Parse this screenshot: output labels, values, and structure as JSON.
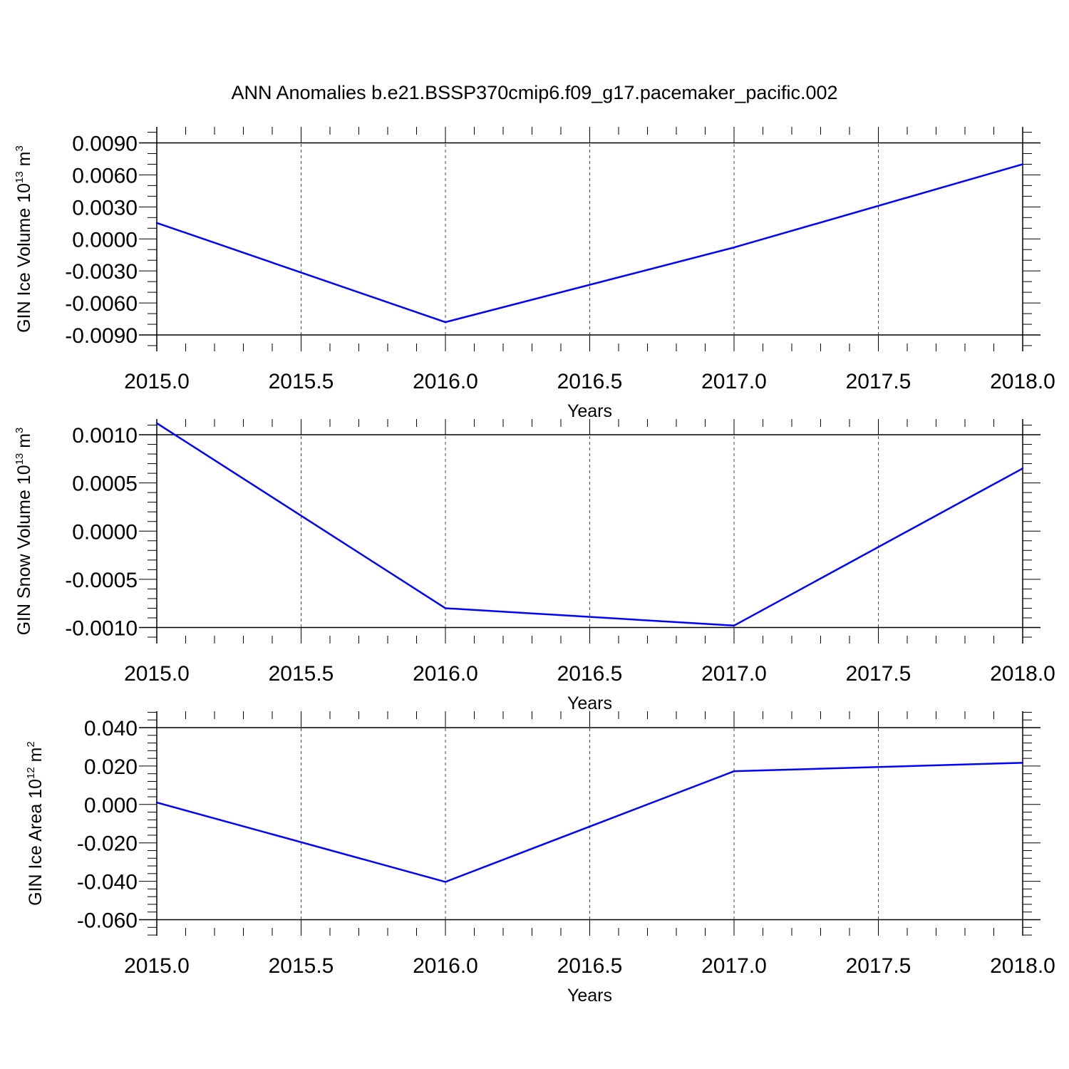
{
  "title": "ANN Anomalies b.e21.BSSP370cmip6.f09_g17.pacemaker_pacific.002",
  "colors": {
    "line": "#0000ff",
    "axis": "#000000",
    "grid": "#000000"
  },
  "chart_data": [
    {
      "type": "line",
      "xlabel": "Years",
      "ylabel": {
        "text": "GIN Ice Volume 10",
        "exp": "13",
        "unit": " m",
        "unit_exp": "3"
      },
      "xlim": [
        2015.0,
        2018.0
      ],
      "ylim": [
        -0.009,
        0.0102
      ],
      "xticks": [
        2015.0,
        2015.5,
        2016.0,
        2016.5,
        2017.0,
        2017.5,
        2018.0
      ],
      "xtick_labels": [
        "2015.0",
        "2015.5",
        "2016.0",
        "2016.5",
        "2017.0",
        "2017.5",
        "2018.0"
      ],
      "yticks": [
        0.009,
        0.006,
        0.003,
        0.0,
        -0.003,
        -0.006,
        -0.009
      ],
      "ytick_labels": [
        "0.0090",
        "0.0060",
        "0.0030",
        "0.0000",
        "-0.0030",
        "-0.0060",
        "-0.0090"
      ],
      "yminor": 0.001,
      "xminor": 0.1,
      "grid": "vertical dashed",
      "x": [
        2015,
        2016,
        2017,
        2018
      ],
      "values": [
        0.0015,
        -0.0078,
        -0.0008,
        0.007
      ]
    },
    {
      "type": "line",
      "xlabel": "Years",
      "ylabel": {
        "text": "GIN Snow Volume 10",
        "exp": "13",
        "unit": " m",
        "unit_exp": "3"
      },
      "xlim": [
        2015.0,
        2018.0
      ],
      "ylim": [
        -0.0012,
        0.0012
      ],
      "xticks": [
        2015.0,
        2015.5,
        2016.0,
        2016.5,
        2017.0,
        2017.5,
        2018.0
      ],
      "xtick_labels": [
        "2015.0",
        "2015.5",
        "2016.0",
        "2016.5",
        "2017.0",
        "2017.5",
        "2018.0"
      ],
      "yticks": [
        0.001,
        0.0005,
        0.0,
        -0.0005,
        -0.001
      ],
      "ytick_labels": [
        "0.0010",
        "0.0005",
        "0.0000",
        "-0.0005",
        "-0.0010"
      ],
      "yminor": 0.0001,
      "xminor": 0.1,
      "grid": "vertical dashed",
      "x": [
        2015,
        2016,
        2017,
        2018
      ],
      "values": [
        0.00112,
        -0.0008,
        -0.00098,
        0.00065
      ]
    },
    {
      "type": "line",
      "xlabel": "Years",
      "ylabel": {
        "text": "GIN Ice Area 10",
        "exp": "12",
        "unit": " m",
        "unit_exp": "2"
      },
      "xlim": [
        2015.0,
        2018.0
      ],
      "ylim": [
        -0.06,
        0.04
      ],
      "xticks": [
        2015.0,
        2015.5,
        2016.0,
        2016.5,
        2017.0,
        2017.5,
        2018.0
      ],
      "xtick_labels": [
        "2015.0",
        "2015.5",
        "2016.0",
        "2016.5",
        "2017.0",
        "2017.5",
        "2018.0"
      ],
      "yticks": [
        0.04,
        0.02,
        0.0,
        -0.02,
        -0.04,
        -0.06
      ],
      "ytick_labels": [
        "0.040",
        "0.020",
        "0.000",
        "-0.020",
        "-0.040",
        "-0.060"
      ],
      "yminor": 0.004,
      "xminor": 0.1,
      "grid": "vertical dashed",
      "x": [
        2015,
        2016,
        2017,
        2018
      ],
      "values": [
        0.001,
        -0.0403,
        0.0173,
        0.0217
      ]
    }
  ]
}
